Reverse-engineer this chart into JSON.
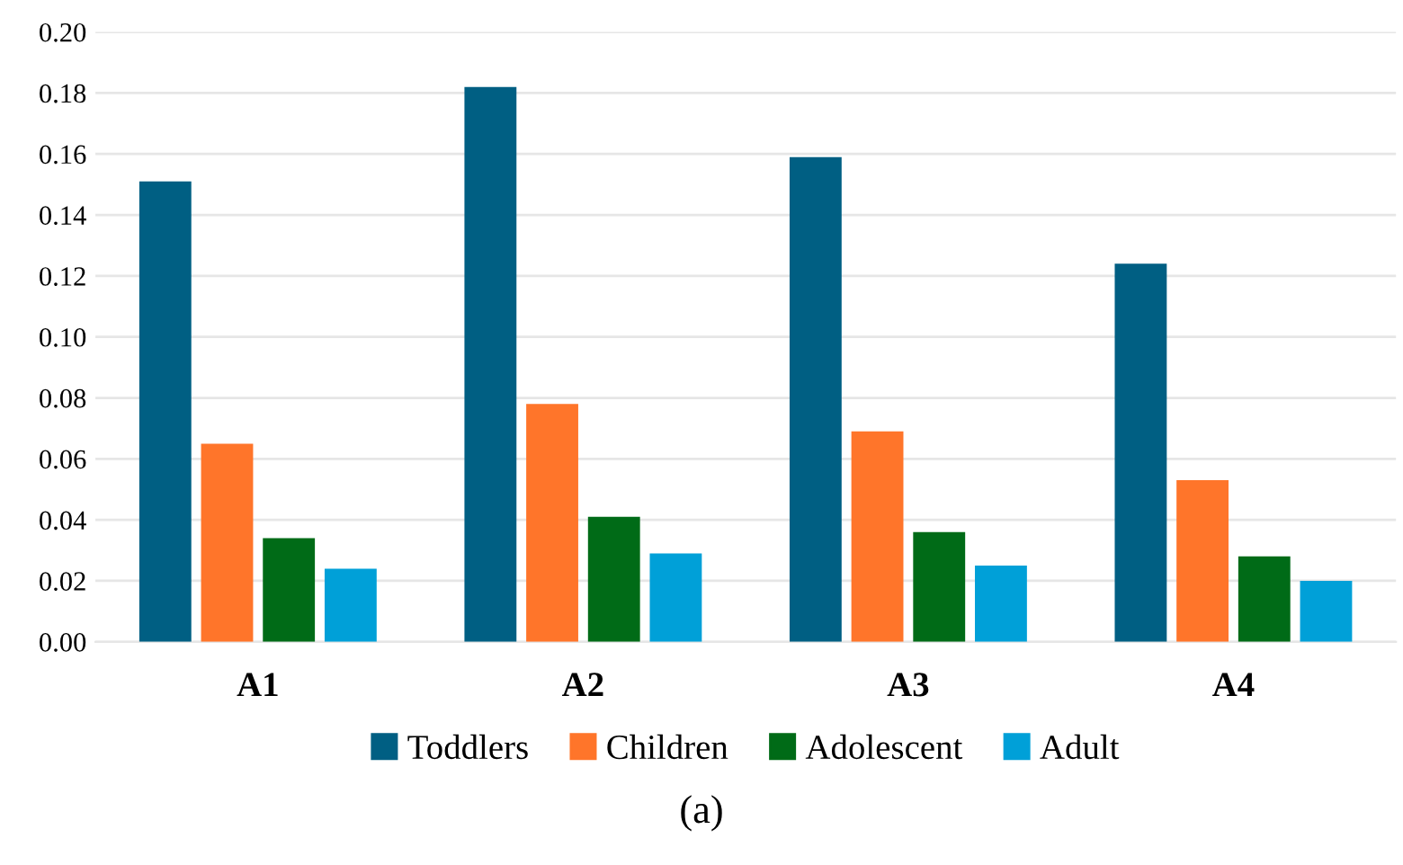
{
  "chart_data": {
    "type": "bar",
    "categories": [
      "A1",
      "A2",
      "A3",
      "A4"
    ],
    "series": [
      {
        "name": "Toddlers",
        "color": "#005f83",
        "values": [
          0.151,
          0.182,
          0.159,
          0.124
        ]
      },
      {
        "name": "Children",
        "color": "#ff752a",
        "values": [
          0.065,
          0.078,
          0.069,
          0.053
        ]
      },
      {
        "name": "Adolescent",
        "color": "#006b17",
        "values": [
          0.034,
          0.041,
          0.036,
          0.028
        ]
      },
      {
        "name": "Adult",
        "color": "#00a0d8",
        "values": [
          0.024,
          0.029,
          0.025,
          0.02
        ]
      }
    ],
    "ylim": [
      0,
      0.2
    ],
    "yticks": [
      {
        "value": 0,
        "label": "0.00"
      },
      {
        "value": 0.02,
        "label": "0.02"
      },
      {
        "value": 0.04,
        "label": "0.04"
      },
      {
        "value": 0.06,
        "label": "0.06"
      },
      {
        "value": 0.08,
        "label": "0.08"
      },
      {
        "value": 0.1,
        "label": "0.10"
      },
      {
        "value": 0.12,
        "label": "0.12"
      },
      {
        "value": 0.14,
        "label": "0.14"
      },
      {
        "value": 0.16,
        "label": "0.16"
      },
      {
        "value": 0.18,
        "label": "0.18"
      },
      {
        "value": 0.2,
        "label": "0.20"
      }
    ],
    "grid": "y",
    "legend": "bottom",
    "annotations": [
      "(a)"
    ]
  }
}
